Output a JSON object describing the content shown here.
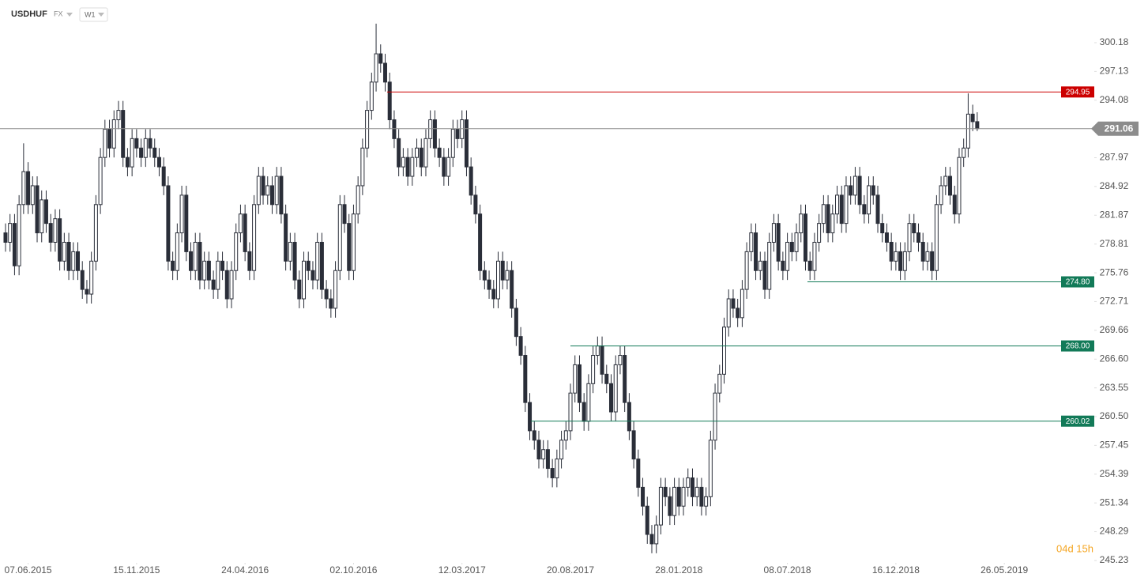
{
  "chart_data": {
    "type": "candlestick",
    "title": "USDHUF",
    "market": "FX",
    "interval": "W1",
    "countdown": "04d 15h",
    "xlim": [
      -1.22,
      240.9
    ],
    "xticks": [
      {
        "value": 5,
        "label": "07.06.2015"
      },
      {
        "value": 29,
        "label": "15.11.2015"
      },
      {
        "value": 53,
        "label": "24.04.2016"
      },
      {
        "value": 77,
        "label": "02.10.2016"
      },
      {
        "value": 101,
        "label": "12.03.2017"
      },
      {
        "value": 125,
        "label": "20.08.2017"
      },
      {
        "value": 149,
        "label": "28.01.2018"
      },
      {
        "value": 173,
        "label": "08.07.2018"
      },
      {
        "value": 197,
        "label": "16.12.2018"
      },
      {
        "value": 221,
        "label": "26.05.2019"
      }
    ],
    "ylim": [
      244.98,
      304.71
    ],
    "yticks": [
      300.18,
      297.13,
      294.08,
      287.97,
      284.92,
      281.87,
      278.81,
      275.76,
      272.71,
      269.66,
      {
        "value": 266.6,
        "label": "266.60"
      },
      263.55,
      {
        "value": 260.5,
        "label": "260.50"
      },
      257.45,
      254.39,
      251.34,
      248.29,
      245.23
    ],
    "up_color": "#ffffff",
    "down_color": "#2a2e39",
    "wick_color": "#2a2e39",
    "open": [
      280,
      279,
      281,
      276.5,
      283,
      286.5,
      283,
      285,
      280,
      283.5,
      281,
      279,
      281.5,
      277,
      279,
      276,
      278,
      276,
      274,
      273.5,
      277,
      283,
      288,
      291,
      289,
      292,
      293,
      288,
      287,
      290,
      289,
      288,
      290,
      289,
      288,
      287,
      285,
      277,
      276,
      280,
      284,
      278,
      276,
      279,
      275,
      277,
      275,
      274,
      277,
      276,
      273,
      276,
      280,
      282,
      278,
      276,
      283,
      286,
      284,
      285,
      283,
      286,
      282,
      277,
      279,
      275,
      273,
      277,
      276,
      275,
      279,
      274,
      273,
      272,
      276,
      283,
      281,
      276,
      282,
      285,
      289,
      293,
      296,
      299,
      298,
      296,
      292,
      290,
      287,
      288,
      286,
      288,
      289,
      287,
      290,
      292,
      289,
      288,
      286,
      288,
      291,
      290,
      292,
      287,
      284,
      282,
      276,
      275,
      274,
      273,
      277,
      275,
      276,
      272,
      269,
      267,
      262,
      259,
      258,
      256,
      257,
      255,
      254,
      256,
      258,
      259,
      263,
      266,
      262,
      260,
      264,
      267,
      268,
      265,
      264,
      261,
      266,
      267,
      262,
      259,
      256,
      253,
      251,
      248,
      247,
      249,
      253,
      252,
      250,
      253,
      251,
      253,
      254,
      252,
      253,
      251,
      252,
      258,
      263,
      265,
      270,
      273,
      272,
      271,
      274,
      278,
      280,
      276,
      277,
      274,
      279,
      281,
      277,
      276,
      279,
      278,
      280,
      282,
      277,
      276,
      279,
      281,
      283,
      280,
      282,
      284,
      281,
      285,
      284,
      286,
      283,
      282,
      285,
      284,
      281,
      280,
      279,
      277,
      278,
      276,
      278,
      281,
      280,
      279,
      277,
      278,
      276,
      283,
      285,
      286,
      284,
      282,
      288,
      289,
      292.6,
      291.8
    ],
    "high": [
      281,
      282,
      282,
      284,
      289.5,
      287.5,
      286,
      286,
      284.5,
      284.5,
      282,
      282.5,
      282.5,
      280,
      280,
      279,
      279,
      277,
      275,
      278,
      284,
      289,
      292,
      292,
      293,
      294,
      294,
      289,
      291,
      291,
      290,
      291,
      291,
      290,
      289,
      288,
      286,
      278,
      281,
      285,
      285,
      279,
      280,
      280,
      278,
      278,
      276,
      278,
      278,
      277,
      277,
      281,
      283,
      283,
      279,
      284,
      287,
      287,
      286,
      286,
      287,
      287,
      283,
      280,
      280,
      276,
      278,
      278,
      277,
      280,
      280,
      275,
      274,
      277,
      284,
      284,
      282,
      283,
      286,
      290,
      294,
      297,
      302.2,
      300,
      299,
      297,
      293,
      291,
      289,
      289,
      289,
      290,
      290,
      291,
      293,
      293,
      290,
      289,
      289,
      292,
      292,
      293,
      293,
      288,
      285,
      283,
      277,
      276,
      275,
      278,
      278,
      277,
      277,
      273,
      270,
      268,
      263,
      260,
      259,
      258,
      258,
      256,
      257,
      259,
      260,
      264,
      267,
      267,
      263,
      265,
      268,
      269,
      269,
      266,
      265,
      267,
      268,
      268,
      263,
      260,
      257,
      254,
      252,
      249,
      250,
      254,
      254,
      253,
      254,
      254,
      254,
      255,
      255,
      254,
      254,
      253,
      259,
      264,
      266,
      271,
      274,
      274,
      273,
      275,
      279,
      281,
      281,
      278,
      278,
      280,
      282,
      282,
      278,
      280,
      280,
      281,
      283,
      283,
      278,
      280,
      282,
      284,
      284,
      283,
      285,
      285,
      286,
      286,
      287,
      287,
      284,
      286,
      286,
      285,
      282,
      281,
      280,
      279,
      279,
      279,
      282,
      282,
      281,
      280,
      279,
      279,
      284,
      286,
      287,
      287,
      285,
      289,
      290,
      294.8,
      293.6,
      292.8
    ],
    "low": [
      278,
      278,
      275.5,
      275.5,
      282,
      282,
      282,
      279,
      279,
      280,
      278,
      278,
      276,
      276,
      275,
      275,
      275,
      273,
      272.5,
      272.5,
      276,
      282,
      287,
      288,
      288,
      291,
      287,
      286,
      286,
      288,
      287,
      287,
      288,
      287,
      286,
      284,
      276,
      275,
      275,
      279,
      277,
      275,
      275,
      274,
      274,
      274,
      273,
      273,
      275,
      272,
      272,
      275,
      279,
      277,
      275,
      275,
      282,
      283,
      283,
      282,
      282,
      281,
      276,
      276,
      274,
      272,
      272,
      275,
      274,
      274,
      273,
      272,
      271,
      271,
      275,
      280,
      275,
      275,
      281,
      284,
      288,
      292,
      295,
      297,
      295,
      291,
      289,
      286,
      286,
      285,
      285,
      287,
      286,
      286,
      289,
      288,
      287,
      285,
      285,
      287,
      289,
      289,
      286,
      283,
      281,
      275,
      274,
      273,
      272,
      272,
      274,
      274,
      271,
      268,
      266,
      261,
      258,
      257,
      255,
      255,
      254,
      253,
      253,
      255,
      257,
      258,
      262,
      261,
      259,
      259,
      263,
      266,
      264,
      263,
      260,
      260,
      265,
      261,
      258,
      255,
      252,
      250,
      247,
      246,
      246,
      248,
      251,
      249,
      249,
      250,
      250,
      252,
      251,
      251,
      250,
      250,
      251,
      257,
      262,
      264,
      269,
      271,
      270,
      270,
      273,
      277,
      275,
      275,
      273,
      273,
      278,
      276,
      275,
      275,
      277,
      277,
      279,
      276,
      275,
      275,
      278,
      280,
      279,
      279,
      281,
      280,
      280,
      283,
      283,
      282,
      281,
      281,
      283,
      280,
      279,
      278,
      276,
      276,
      275,
      275,
      277,
      279,
      278,
      276,
      276,
      275,
      275,
      282,
      284,
      283,
      281,
      281,
      287,
      288,
      290.8,
      290.8
    ],
    "close": [
      279,
      281,
      276.5,
      283,
      286.5,
      283,
      285,
      280,
      283.5,
      281,
      279,
      281.5,
      277,
      279,
      276,
      278,
      276,
      274,
      273.5,
      277,
      283,
      288,
      291,
      289,
      292,
      293,
      288,
      287,
      290,
      289,
      288,
      290,
      289,
      288,
      287,
      285,
      277,
      276,
      280,
      284,
      278,
      276,
      279,
      275,
      277,
      275,
      274,
      277,
      276,
      273,
      276,
      280,
      282,
      278,
      276,
      283,
      286,
      284,
      285,
      283,
      286,
      282,
      277,
      279,
      275,
      273,
      277,
      276,
      275,
      279,
      274,
      273,
      272,
      276,
      283,
      281,
      276,
      282,
      285,
      289,
      293,
      296,
      299,
      298,
      296,
      292,
      290,
      287,
      288,
      286,
      288,
      289,
      287,
      290,
      292,
      289,
      288,
      286,
      288,
      291,
      290,
      292,
      287,
      284,
      282,
      276,
      275,
      274,
      273,
      277,
      275,
      276,
      272,
      269,
      267,
      262,
      259,
      258,
      256,
      257,
      255,
      254,
      256,
      258,
      259,
      263,
      266,
      262,
      260,
      264,
      267,
      268,
      265,
      264,
      261,
      266,
      267,
      262,
      259,
      256,
      253,
      251,
      248,
      247,
      249,
      253,
      252,
      250,
      253,
      251,
      253,
      254,
      252,
      253,
      251,
      252,
      258,
      263,
      265,
      270,
      273,
      272,
      271,
      274,
      278,
      280,
      276,
      277,
      274,
      279,
      281,
      277,
      276,
      279,
      278,
      280,
      282,
      277,
      276,
      279,
      281,
      283,
      280,
      282,
      284,
      281,
      285,
      284,
      286,
      283,
      282,
      285,
      284,
      281,
      280,
      279,
      277,
      278,
      276,
      278,
      281,
      280,
      279,
      277,
      278,
      276,
      283,
      285,
      286,
      284,
      282,
      288,
      289,
      292.6,
      291.8,
      291.06
    ],
    "levels": [
      {
        "value": 294.95,
        "color": "#cc0000"
      },
      {
        "value": 274.8,
        "value_label": "274.80",
        "color": "#127a58"
      },
      {
        "value": 268,
        "value_label": "268.00",
        "color": "#127a58"
      },
      {
        "value": 260.02,
        "color": "#127a58"
      }
    ],
    "last_price": {
      "value": 291.06,
      "color": "#8c8c8c"
    },
    "countdown_color": "#f5a623"
  }
}
